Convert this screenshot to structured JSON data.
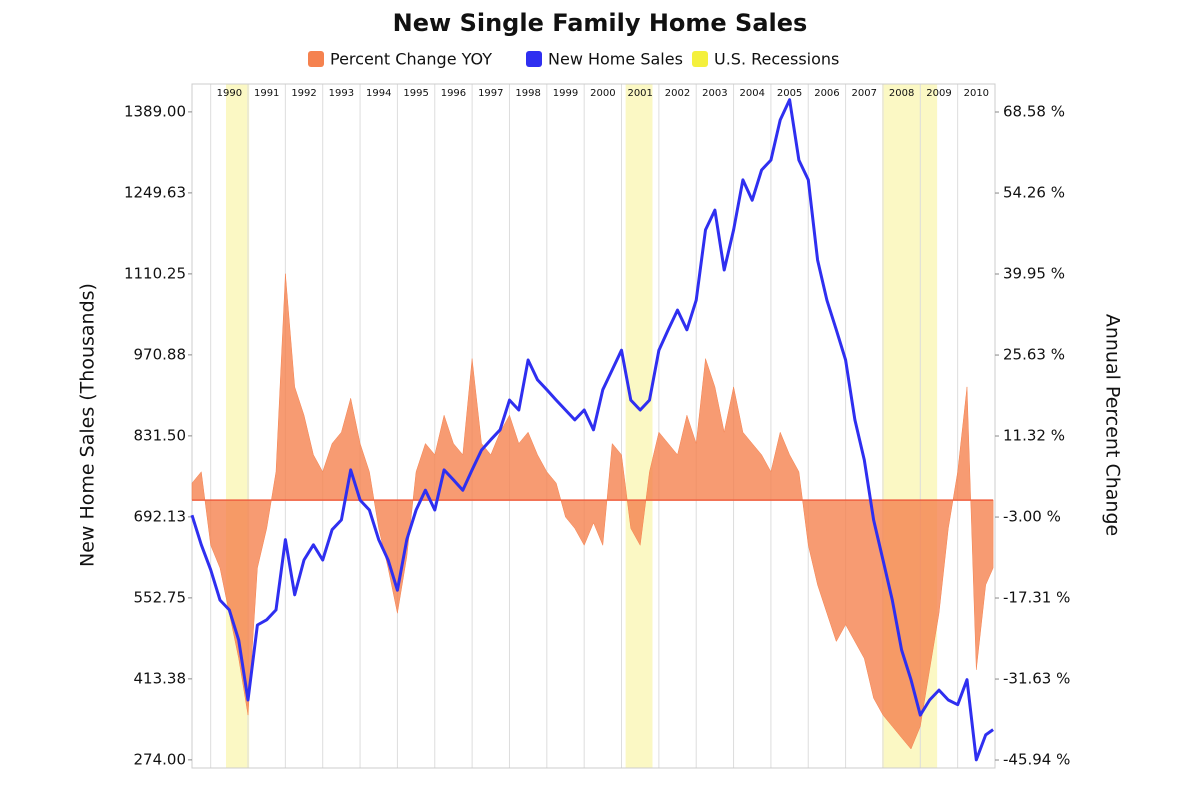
{
  "chart_data": {
    "type": "line",
    "title": "New Single Family Home Sales",
    "y_label": "New Home Sales (Thousands)",
    "y2_label": "Annual Percent Change",
    "x": [
      1989.5,
      1989.75,
      1990,
      1990.25,
      1990.5,
      1990.75,
      1991,
      1991.25,
      1991.5,
      1991.75,
      1992,
      1992.25,
      1992.5,
      1992.75,
      1993,
      1993.25,
      1993.5,
      1993.75,
      1994,
      1994.25,
      1994.5,
      1994.75,
      1995,
      1995.25,
      1995.5,
      1995.75,
      1996,
      1996.25,
      1996.5,
      1996.75,
      1997,
      1997.25,
      1997.5,
      1997.75,
      1998,
      1998.25,
      1998.5,
      1998.75,
      1999,
      1999.25,
      1999.5,
      1999.75,
      2000,
      2000.25,
      2000.5,
      2000.75,
      2001,
      2001.25,
      2001.5,
      2001.75,
      2002,
      2002.25,
      2002.5,
      2002.75,
      2003,
      2003.25,
      2003.5,
      2003.75,
      2004,
      2004.25,
      2004.5,
      2004.75,
      2005,
      2005.25,
      2005.5,
      2005.75,
      2006,
      2006.25,
      2006.5,
      2006.75,
      2007,
      2007.25,
      2007.5,
      2007.75,
      2008,
      2008.25,
      2008.5,
      2008.75,
      2009,
      2009.25,
      2009.5,
      2009.75,
      2010,
      2010.25,
      2010.5,
      2010.75,
      2010.95
    ],
    "series": [
      {
        "name": "Percent Change YOY",
        "color": "#f5824f",
        "type": "area",
        "axis": "y2",
        "values": [
          3,
          5,
          -8,
          -12,
          -20,
          -28,
          -38,
          -12,
          -5,
          5,
          40,
          20,
          15,
          8,
          5,
          10,
          12,
          18,
          10,
          5,
          -5,
          -12,
          -20,
          -10,
          5,
          10,
          8,
          15,
          10,
          8,
          25,
          10,
          8,
          12,
          15,
          10,
          12,
          8,
          5,
          3,
          -3,
          -5,
          -8,
          -4,
          -8,
          10,
          8,
          -5,
          -8,
          5,
          12,
          10,
          8,
          15,
          10,
          25,
          20,
          12,
          20,
          12,
          10,
          8,
          5,
          12,
          8,
          5,
          -8,
          -15,
          -20,
          -25,
          -22,
          -25,
          -28,
          -35,
          -38,
          -40,
          -42,
          -44,
          -40,
          -30,
          -20,
          -5,
          5,
          20,
          -30,
          -15,
          -12
        ]
      },
      {
        "name": "New Home Sales",
        "color": "#2f2ff0",
        "type": "line",
        "values": [
          695,
          644,
          601,
          549,
          532,
          480,
          377,
          506,
          515,
          532,
          653,
          558,
          618,
          644,
          618,
          670,
          687,
          773,
          721,
          704,
          653,
          618,
          566,
          653,
          704,
          738,
          704,
          773,
          756,
          738,
          773,
          807,
          825,
          842,
          893,
          876,
          962,
          928,
          911,
          893,
          876,
          859,
          876,
          842,
          911,
          945,
          979,
          893,
          876,
          893,
          979,
          1014,
          1048,
          1014,
          1065,
          1186,
          1220,
          1117,
          1186,
          1272,
          1237,
          1289,
          1306,
          1375,
          1410,
          1306,
          1272,
          1134,
          1065,
          1014,
          962,
          859,
          790,
          687,
          618,
          549,
          463,
          412,
          351,
          377,
          394,
          377,
          369,
          412,
          274,
          317,
          326
        ]
      }
    ],
    "recessions": {
      "name": "U.S. Recessions",
      "color": "#f4f03c",
      "fill": "#fbf8c4",
      "periods": [
        [
          1990.41,
          1991.03
        ],
        [
          2001.11,
          2001.83
        ],
        [
          2007.98,
          2009.45
        ]
      ]
    },
    "xlim": [
      1989.5,
      2011
    ],
    "xticks": [
      1990,
      1991,
      1992,
      1993,
      1994,
      1995,
      1996,
      1997,
      1998,
      1999,
      2000,
      2001,
      2002,
      2003,
      2004,
      2005,
      2006,
      2007,
      2008,
      2009,
      2010
    ],
    "ylim": [
      260,
      1437
    ],
    "yticks": [
      {
        "value": 274,
        "label": "274.00"
      },
      {
        "value": 413.38,
        "label": "413.38"
      },
      {
        "value": 552.75,
        "label": "552.75"
      },
      {
        "value": 692.13,
        "label": "692.13"
      },
      {
        "value": 831.5,
        "label": "831.50"
      },
      {
        "value": 970.88,
        "label": "970.88"
      },
      {
        "value": 1110.25,
        "label": "1110.25"
      },
      {
        "value": 1249.63,
        "label": "1249.63"
      },
      {
        "value": 1389,
        "label": "1389.00"
      }
    ],
    "y2lim": [
      -47.35,
      73.53
    ],
    "y2ticks": [
      {
        "value": -45.94,
        "label": "-45.94 %"
      },
      {
        "value": -31.63,
        "label": "-31.63 %"
      },
      {
        "value": -17.31,
        "label": "-17.31 %"
      },
      {
        "value": -3,
        "label": "-3.00 %"
      },
      {
        "value": 11.32,
        "label": "11.32 %"
      },
      {
        "value": 25.63,
        "label": "25.63 %"
      },
      {
        "value": 39.95,
        "label": "39.95 %"
      },
      {
        "value": 54.26,
        "label": "54.26 %"
      },
      {
        "value": 68.58,
        "label": "68.58 %"
      }
    ],
    "grid": true
  }
}
